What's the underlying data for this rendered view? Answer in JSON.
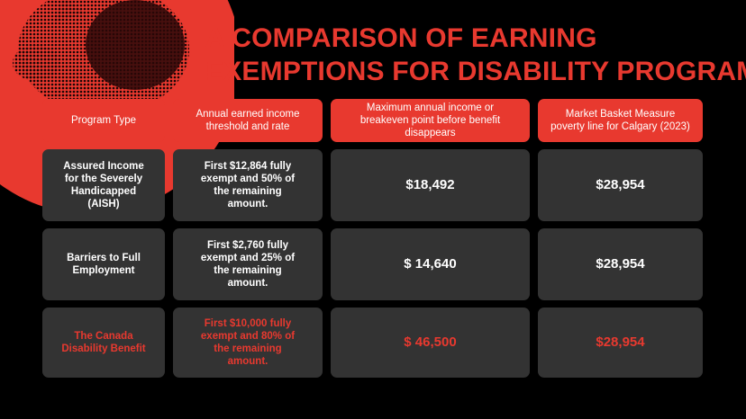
{
  "header": {
    "title_lines": [
      "A COMPARISON OF EARNING",
      "EXEMPTIONS FOR DISABILITY PROGRAMS"
    ]
  },
  "table": {
    "headers": [
      "Program Type",
      "Annual earned income threshold and rate",
      "Maximum annual income or breakeven point before benefit disappears",
      "Market Basket Measure poverty line for Calgary (2023)"
    ],
    "rows": [
      [
        "Assured Income for the Severely Handicapped (AISH)",
        "First $12,864 fully exempt and 50% of the remaining amount.",
        "$18,492",
        "$28,954"
      ],
      [
        "Barriers to Full Employment",
        "First $2,760 fully exempt and 25% of the remaining amount.",
        "$ 14,640",
        "$28,954"
      ],
      [
        "The Canada Disability Benefit",
        "First $10,000 fully exempt and 80% of the remaining amount.",
        "$ 46,500",
        "$28,954"
      ]
    ]
  }
}
